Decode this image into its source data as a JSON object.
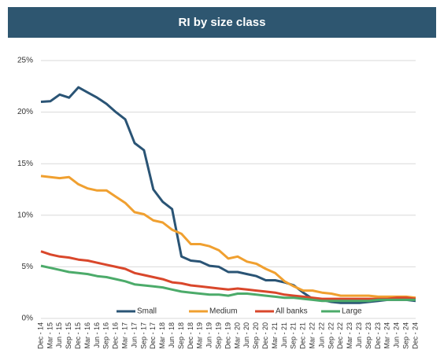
{
  "chart_data": {
    "type": "line",
    "title": "RI by size class",
    "categories": [
      "Dec - 14",
      "Mar - 15",
      "Jun - 15",
      "Sep - 15",
      "Dec - 15",
      "Mar - 16",
      "Jun - 16",
      "Sep - 16",
      "Dec - 16",
      "Mar - 17",
      "Jun - 17",
      "Sep - 17",
      "Dec - 17",
      "Mar - 18",
      "Jun - 18",
      "Sep - 18",
      "Dec - 18",
      "Mar - 19",
      "Jun - 19",
      "Sep - 19",
      "Dec - 19",
      "Mar - 20",
      "Jun - 20",
      "Sep - 20",
      "Dec - 20",
      "Mar - 21",
      "Jun - 21",
      "Sep - 21",
      "Dec - 21",
      "Mar - 22",
      "Jun - 22",
      "Sep - 22",
      "Dec - 22",
      "Mar - 23",
      "Jun - 23",
      "Sep - 23",
      "Dec - 23",
      "Mar - 24",
      "Jun - 24",
      "Sep - 24",
      "Dec - 24"
    ],
    "series": [
      {
        "name": "Small",
        "color": "#2a5475",
        "values": [
          21.0,
          21.05,
          21.7,
          21.4,
          22.4,
          21.9,
          21.4,
          20.8,
          20.0,
          19.3,
          17.0,
          16.3,
          12.5,
          11.3,
          10.6,
          6.0,
          5.6,
          5.5,
          5.1,
          5.0,
          4.5,
          4.5,
          4.3,
          4.1,
          3.7,
          3.7,
          3.5,
          3.2,
          2.5,
          1.9,
          1.8,
          1.6,
          1.5,
          1.5,
          1.5,
          1.6,
          1.7,
          1.8,
          1.8,
          1.8,
          1.7
        ]
      },
      {
        "name": "Medium",
        "color": "#f0a030",
        "values": [
          13.8,
          13.7,
          13.6,
          13.7,
          13.0,
          12.6,
          12.4,
          12.4,
          11.8,
          11.2,
          10.3,
          10.1,
          9.5,
          9.3,
          8.6,
          8.2,
          7.2,
          7.2,
          7.0,
          6.6,
          5.8,
          6.0,
          5.5,
          5.3,
          4.8,
          4.4,
          3.6,
          3.1,
          2.7,
          2.7,
          2.5,
          2.4,
          2.2,
          2.2,
          2.2,
          2.2,
          2.1,
          2.1,
          2.1,
          2.1,
          2.0
        ]
      },
      {
        "name": "All banks",
        "color": "#d9472b",
        "values": [
          6.5,
          6.2,
          6.0,
          5.9,
          5.7,
          5.6,
          5.4,
          5.2,
          5.0,
          4.8,
          4.4,
          4.2,
          4.0,
          3.8,
          3.5,
          3.4,
          3.2,
          3.1,
          3.0,
          2.9,
          2.8,
          2.9,
          2.8,
          2.7,
          2.6,
          2.5,
          2.3,
          2.2,
          2.1,
          2.0,
          1.9,
          1.9,
          1.9,
          1.9,
          1.9,
          1.9,
          1.9,
          1.9,
          2.0,
          2.0,
          1.9
        ]
      },
      {
        "name": "Large",
        "color": "#4cab6a",
        "values": [
          5.1,
          4.9,
          4.7,
          4.5,
          4.4,
          4.3,
          4.1,
          4.0,
          3.8,
          3.6,
          3.3,
          3.2,
          3.1,
          3.0,
          2.8,
          2.6,
          2.5,
          2.4,
          2.3,
          2.3,
          2.2,
          2.4,
          2.4,
          2.3,
          2.2,
          2.1,
          2.0,
          2.0,
          1.9,
          1.8,
          1.7,
          1.7,
          1.7,
          1.7,
          1.7,
          1.7,
          1.8,
          1.8,
          1.8,
          1.8,
          1.8
        ]
      }
    ],
    "ylim": [
      0,
      25
    ],
    "yticks": [
      {
        "value": 0,
        "label": "0%"
      },
      {
        "value": 5,
        "label": "5%"
      },
      {
        "value": 10,
        "label": "10%"
      },
      {
        "value": 15,
        "label": "15%"
      },
      {
        "value": 20,
        "label": "20%"
      },
      {
        "value": 25,
        "label": "25%"
      }
    ],
    "grid": true,
    "legend": "bottom"
  }
}
